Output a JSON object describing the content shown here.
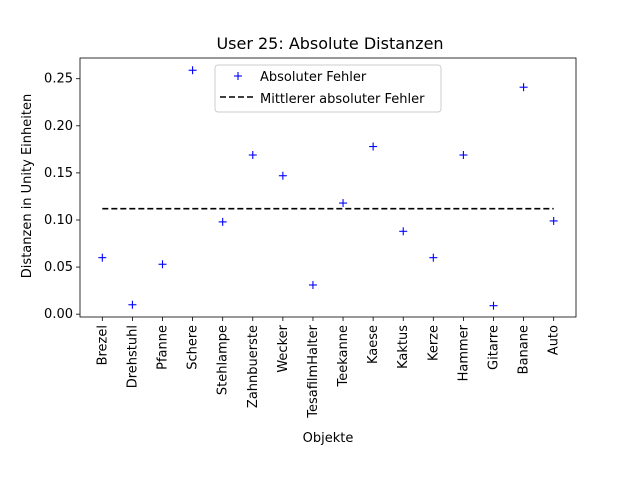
{
  "chart_data": {
    "type": "scatter",
    "title": "User 25: Absolute Distanzen",
    "xlabel": "Objekte",
    "ylabel": "Distanzen in Unity Einheiten",
    "categories": [
      "Brezel",
      "Drehstuhl",
      "Pfanne",
      "Schere",
      "Stehlampe",
      "Zahnbuerste",
      "Wecker",
      "TesafilmHalter",
      "Teekanne",
      "Kaese",
      "Kaktus",
      "Kerze",
      "Hammer",
      "Gitarre",
      "Banane",
      "Auto"
    ],
    "series": [
      {
        "name": "Absoluter Fehler",
        "marker": "+",
        "color": "#0000ff",
        "values": [
          0.06,
          0.01,
          0.053,
          0.259,
          0.098,
          0.169,
          0.147,
          0.031,
          0.118,
          0.178,
          0.088,
          0.06,
          0.169,
          0.009,
          0.241,
          0.099
        ]
      },
      {
        "name": "Mittlerer absoluter Fehler",
        "style": "dashed",
        "color": "#000000",
        "value": 0.112
      }
    ],
    "ylim": [
      -0.003,
      0.272
    ],
    "yticks": [
      0.0,
      0.05,
      0.1,
      0.15,
      0.2,
      0.25
    ],
    "ytick_labels": [
      "0.00",
      "0.05",
      "0.10",
      "0.15",
      "0.20",
      "0.25"
    ],
    "grid": false,
    "legend_position": "upper center"
  }
}
